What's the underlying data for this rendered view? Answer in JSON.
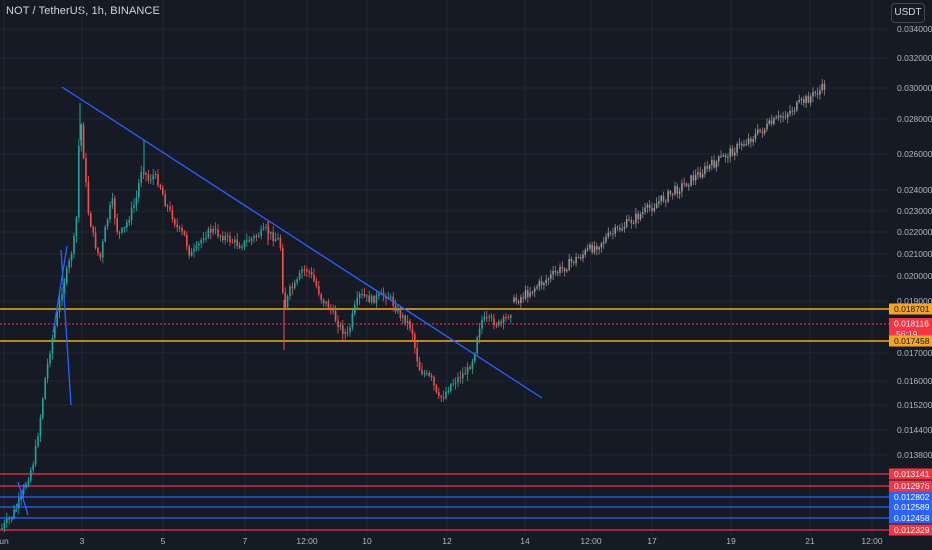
{
  "header": {
    "title": "NOT / TetherUS, 1h, BINANCE",
    "currency_button": "USDT"
  },
  "chart_data": {
    "type": "candlestick",
    "y_ticks": [
      "0.034000",
      "0.032000",
      "0.030000",
      "0.028000",
      "0.026000",
      "0.024000",
      "0.023000",
      "0.022000",
      "0.021000",
      "0.020000",
      "0.019000",
      "0.017000",
      "0.016000",
      "0.015200",
      "0.014400",
      "0.013800"
    ],
    "x_ticks": [
      "un",
      "3",
      "5",
      "7",
      "12:00",
      "10",
      "12",
      "14",
      "12:00",
      "17",
      "19",
      "21",
      "12:00"
    ],
    "price_tags": [
      {
        "label": "0.018701",
        "color": "#f5a623"
      },
      {
        "label": "0.018116",
        "sublabel": "56:19",
        "color": "#f23645"
      },
      {
        "label": "0.017458",
        "color": "#f5a623"
      },
      {
        "label": "0.013141",
        "color": "#f23645"
      },
      {
        "label": "0.012976",
        "color": "#f23645"
      },
      {
        "label": "0.012802",
        "color": "#2962ff"
      },
      {
        "label": "0.012589",
        "color": "#2962ff"
      },
      {
        "label": "0.012458",
        "color": "#2962ff"
      },
      {
        "label": "0.012329",
        "color": "#f23645"
      }
    ],
    "colors": {
      "up": "#26a69a",
      "down": "#ef5350",
      "trendline": "#2962ff",
      "support": "#f5a623",
      "background": "#161a25",
      "grid": "#232632"
    }
  }
}
